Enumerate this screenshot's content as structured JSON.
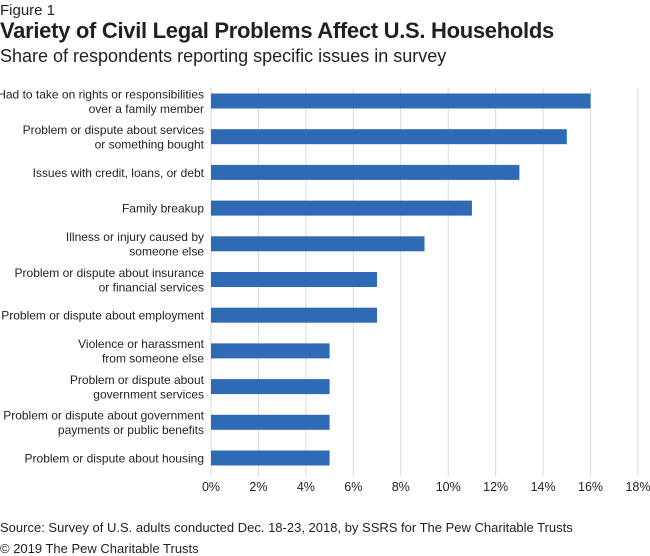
{
  "figure_label": "Figure 1",
  "title": "Variety of Civil Legal Problems Affect U.S. Households",
  "subtitle": "Share of respondents reporting specific issues in survey",
  "source": "Source: Survey of U.S. adults conducted Dec. 18-23, 2018, by SSRS for The Pew Charitable Trusts",
  "copyright": "© 2019 The Pew Charitable Trusts",
  "colors": {
    "bar": "#2f6bb5",
    "grid": "#d9d9d9"
  },
  "chart_data": {
    "type": "bar",
    "orientation": "horizontal",
    "title": "Variety of Civil Legal Problems Affect U.S. Households",
    "subtitle": "Share of respondents reporting specific issues in survey",
    "categories": [
      [
        "Had to take on rights or responsibilities",
        "over a family member"
      ],
      [
        "Problem or dispute about services",
        "or something bought"
      ],
      [
        "Issues with credit, loans, or debt"
      ],
      [
        "Family breakup"
      ],
      [
        "Illness or injury caused by",
        "someone else"
      ],
      [
        "Problem or dispute about insurance",
        "or financial services"
      ],
      [
        "Problem or dispute about employment"
      ],
      [
        "Violence or harassment",
        "from someone else"
      ],
      [
        "Problem or dispute about",
        "government services"
      ],
      [
        "Problem or dispute about government",
        "payments or public benefits"
      ],
      [
        "Problem or dispute about housing"
      ]
    ],
    "values": [
      16,
      15,
      13,
      11,
      9,
      7,
      7,
      5,
      5,
      5,
      5
    ],
    "xlim": [
      0,
      18
    ],
    "xticks": [
      "0%",
      "2%",
      "4%",
      "6%",
      "8%",
      "10%",
      "12%",
      "14%",
      "16%",
      "18%"
    ],
    "grid": "vertical",
    "xlabel": "",
    "ylabel": ""
  }
}
